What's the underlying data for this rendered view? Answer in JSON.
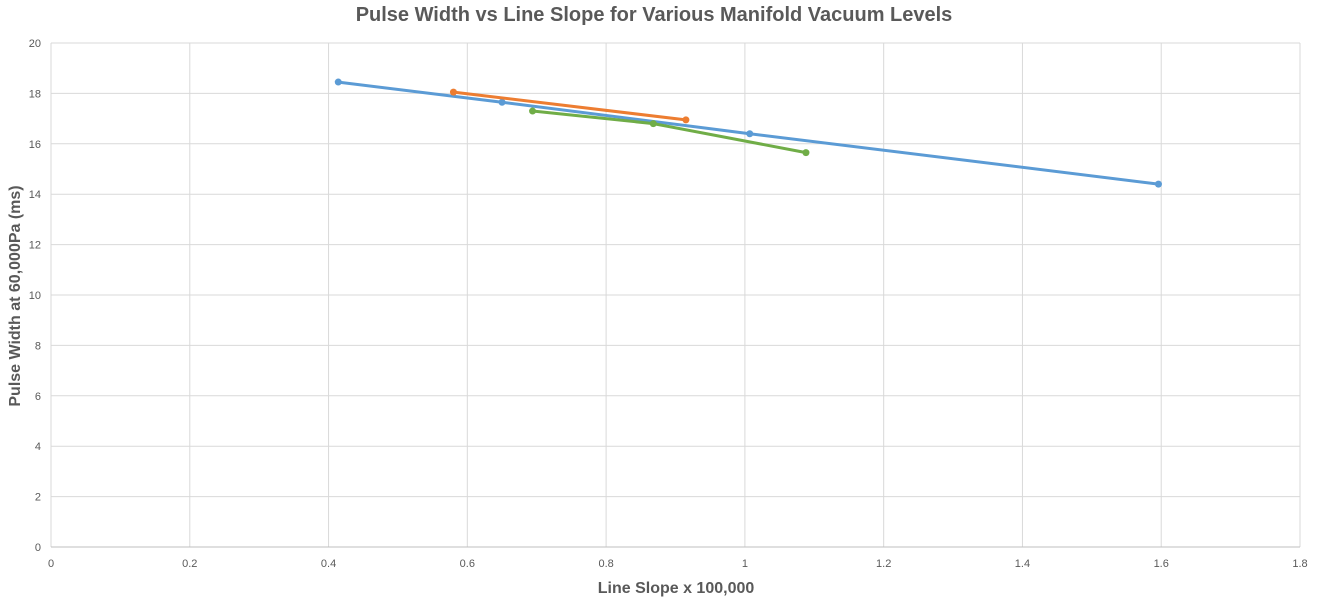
{
  "chart_data": {
    "type": "scatter",
    "title": "Pulse Width vs Line Slope for Various Manifold Vacuum Levels",
    "xlabel": "Line Slope x 100,000",
    "ylabel": "Pulse Width at 60,000Pa (ms)",
    "xlim": [
      0,
      1.8
    ],
    "ylim": [
      0,
      20
    ],
    "xticks": [
      0,
      0.2,
      0.4,
      0.6,
      0.8,
      1,
      1.2,
      1.4,
      1.6,
      1.8
    ],
    "xtick_labels": [
      "0",
      "0.2",
      "0.4",
      "0.6",
      "0.8",
      "1",
      "1.2",
      "1.4",
      "1.6",
      "1.8"
    ],
    "yticks": [
      0,
      2,
      4,
      6,
      8,
      10,
      12,
      14,
      16,
      18,
      20
    ],
    "ytick_labels": [
      "0",
      "2",
      "4",
      "6",
      "8",
      "10",
      "12",
      "14",
      "16",
      "18",
      "20"
    ],
    "grid": true,
    "legend": "none",
    "series": [
      {
        "color": "#5b9bd5",
        "points": [
          [
            0.414,
            18.45
          ],
          [
            0.65,
            17.65
          ],
          [
            1.007,
            16.4
          ],
          [
            1.596,
            14.4
          ]
        ]
      },
      {
        "color": "#ed7d31",
        "points": [
          [
            0.58,
            18.05
          ],
          [
            0.915,
            16.95
          ]
        ]
      },
      {
        "color": "#70ad47",
        "points": [
          [
            0.694,
            17.3
          ],
          [
            0.868,
            16.8
          ],
          [
            1.088,
            15.65
          ]
        ]
      }
    ]
  }
}
